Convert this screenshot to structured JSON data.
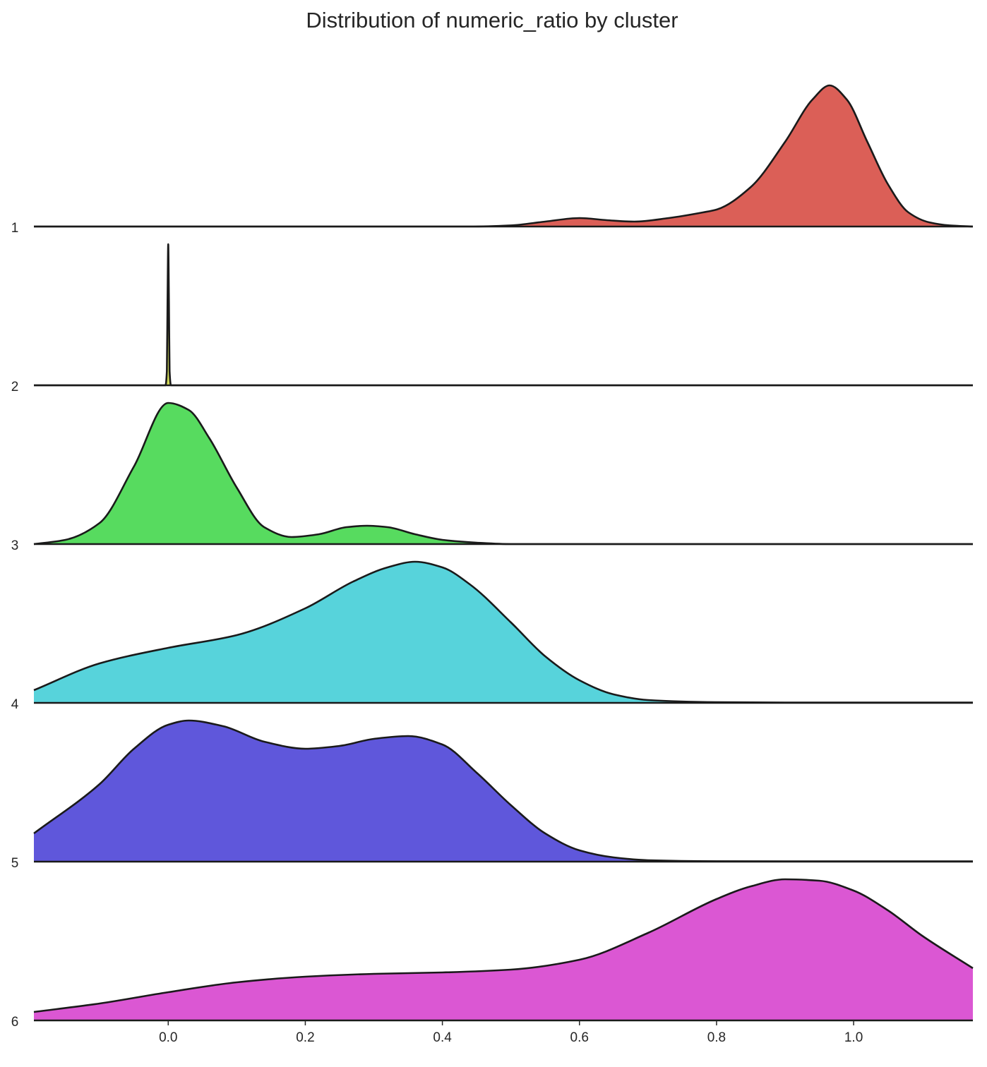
{
  "chart_data": {
    "type": "area",
    "subtype": "ridgeline-kde",
    "title": "Distribution of numeric_ratio by cluster",
    "xlabel": "",
    "ylabel": "",
    "xlim": [
      -0.196,
      1.174
    ],
    "grid": false,
    "legend": "none",
    "x_ticks": [
      0.0,
      0.2,
      0.4,
      0.6,
      0.8,
      1.0
    ],
    "x_tick_labels": [
      "0.0",
      "0.2",
      "0.4",
      "0.6",
      "0.8",
      "1.0"
    ],
    "outline_color": "#1a1a1a",
    "series": [
      {
        "label": "1",
        "color": "#db5f57",
        "x": [
          -0.196,
          0.0,
          0.3,
          0.44,
          0.5,
          0.55,
          0.6,
          0.64,
          0.68,
          0.73,
          0.78,
          0.8,
          0.85,
          0.9,
          0.94,
          0.965,
          0.99,
          1.02,
          1.05,
          1.08,
          1.11,
          1.14,
          1.174
        ],
        "y": [
          0,
          0,
          0,
          0,
          0.008,
          0.035,
          0.06,
          0.045,
          0.035,
          0.06,
          0.1,
          0.12,
          0.28,
          0.6,
          0.9,
          1.0,
          0.9,
          0.6,
          0.3,
          0.1,
          0.03,
          0.008,
          0
        ]
      },
      {
        "label": "2",
        "color": "#d3db57",
        "x": [
          -0.196,
          -0.004,
          -0.002,
          -0.001,
          0.0,
          0.001,
          0.002,
          0.004,
          1.174
        ],
        "y": [
          0,
          0,
          0.1,
          0.6,
          1.0,
          0.6,
          0.1,
          0,
          0
        ]
      },
      {
        "label": "3",
        "color": "#57db5f",
        "x": [
          -0.196,
          -0.15,
          -0.1,
          -0.05,
          0.0,
          0.03,
          0.06,
          0.1,
          0.14,
          0.18,
          0.22,
          0.26,
          0.29,
          0.32,
          0.36,
          0.4,
          0.45,
          0.5,
          1.174
        ],
        "y": [
          0,
          0.03,
          0.15,
          0.55,
          1.0,
          0.95,
          0.75,
          0.4,
          0.12,
          0.05,
          0.07,
          0.12,
          0.13,
          0.12,
          0.07,
          0.03,
          0.01,
          0,
          0
        ]
      },
      {
        "label": "4",
        "color": "#57d3db",
        "x": [
          -0.196,
          -0.1,
          0.0,
          0.1,
          0.2,
          0.27,
          0.32,
          0.36,
          0.4,
          0.44,
          0.5,
          0.55,
          0.6,
          0.65,
          0.7,
          0.8,
          0.9,
          1.174
        ],
        "y": [
          0.09,
          0.28,
          0.39,
          0.48,
          0.67,
          0.86,
          0.96,
          1.0,
          0.96,
          0.84,
          0.57,
          0.33,
          0.16,
          0.06,
          0.02,
          0.005,
          0.002,
          0.002
        ]
      },
      {
        "label": "5",
        "color": "#5f57db",
        "x": [
          -0.196,
          -0.1,
          -0.05,
          0.0,
          0.03,
          0.08,
          0.14,
          0.2,
          0.25,
          0.3,
          0.35,
          0.4,
          0.45,
          0.5,
          0.55,
          0.6,
          0.65,
          0.7,
          0.8,
          0.9,
          1.174
        ],
        "y": [
          0.2,
          0.55,
          0.8,
          0.97,
          1.0,
          0.96,
          0.85,
          0.8,
          0.82,
          0.87,
          0.89,
          0.83,
          0.63,
          0.4,
          0.2,
          0.08,
          0.03,
          0.01,
          0.003,
          0.002,
          0.002
        ]
      },
      {
        "label": "6",
        "color": "#db57d3",
        "x": [
          -0.196,
          -0.1,
          0.0,
          0.1,
          0.2,
          0.3,
          0.4,
          0.5,
          0.6,
          0.7,
          0.8,
          0.85,
          0.9,
          0.95,
          1.0,
          1.05,
          1.1,
          1.174
        ],
        "y": [
          0.06,
          0.12,
          0.2,
          0.27,
          0.31,
          0.33,
          0.34,
          0.36,
          0.43,
          0.62,
          0.86,
          0.95,
          1.0,
          0.99,
          0.92,
          0.78,
          0.6,
          0.37
        ]
      }
    ]
  }
}
